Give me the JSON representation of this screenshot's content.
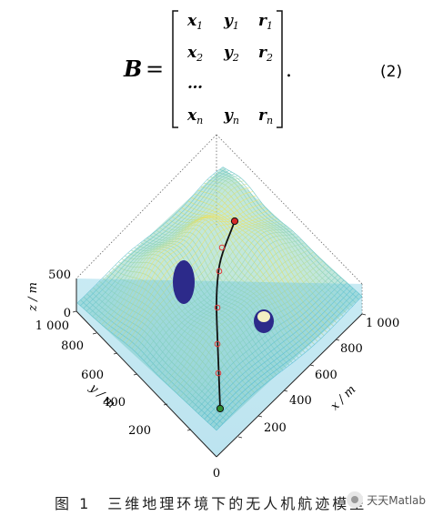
{
  "equation": {
    "lhs": "B",
    "eq": "=",
    "rows": [
      {
        "x": "x",
        "xs": "1",
        "y": "y",
        "ys": "1",
        "r": "r",
        "rs": "1"
      },
      {
        "x": "x",
        "xs": "2",
        "y": "y",
        "ys": "2",
        "r": "r",
        "rs": "2"
      },
      {
        "x": "…",
        "xs": "",
        "y": "",
        "ys": "",
        "r": "",
        "rs": ""
      },
      {
        "x": "x",
        "xs": "n",
        "y": "y",
        "ys": "n",
        "r": "r",
        "rs": "n"
      }
    ],
    "period": ".",
    "number": "(2)"
  },
  "figure": {
    "z_ticks": [
      "500",
      "0"
    ],
    "z_label": "z / m",
    "y_ticks": [
      "1 000",
      "800",
      "600",
      "400",
      "200"
    ],
    "y_label": "y / m",
    "x_ticks": [
      "1 000",
      "800",
      "600",
      "400",
      "200"
    ],
    "x_label": "x / m",
    "origin_tick": "0",
    "colors": {
      "terrain_low": "#49b8d6",
      "terrain_mid": "#a8dcaa",
      "terrain_high": "#f4e25a",
      "obstacle": "#2c2a8a",
      "path": "#111111",
      "start": "#2e8b2e",
      "goal": "#d62a2a",
      "waypoint": "#e23b3b"
    }
  },
  "caption": {
    "fig_no": "图 1",
    "text": "三维地理环境下的无人机航迹模型"
  },
  "watermark": {
    "text": "天天Matlab"
  }
}
